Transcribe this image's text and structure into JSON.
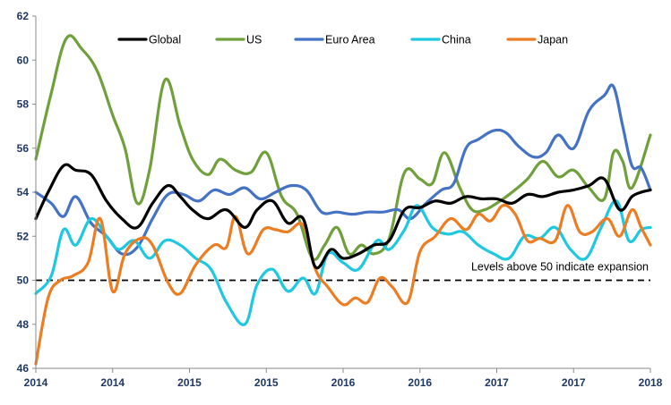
{
  "chart_data": {
    "type": "line",
    "title": "",
    "xlabel": "",
    "ylabel": "",
    "ylim": [
      46,
      62
    ],
    "yticks": [
      46,
      48,
      50,
      52,
      54,
      56,
      58,
      60,
      62
    ],
    "xlim": [
      0,
      1
    ],
    "xticks": [
      {
        "pos": 0.0,
        "label": "2014"
      },
      {
        "pos": 0.125,
        "label": "2014"
      },
      {
        "pos": 0.25,
        "label": "2015"
      },
      {
        "pos": 0.375,
        "label": "2015"
      },
      {
        "pos": 0.5,
        "label": "2016"
      },
      {
        "pos": 0.625,
        "label": "2016"
      },
      {
        "pos": 0.75,
        "label": "2017"
      },
      {
        "pos": 0.875,
        "label": "2017"
      },
      {
        "pos": 1.0,
        "label": "2018"
      }
    ],
    "grid": false,
    "legend_position": "top",
    "reference_line": {
      "y": 50,
      "style": "dashed",
      "color": "#000000"
    },
    "annotation": "Levels above 50 indicate expansion",
    "series": [
      {
        "name": "Global",
        "color": "#000000",
        "x": [
          0,
          0.02,
          0.045,
          0.065,
          0.09,
          0.115,
          0.14,
          0.165,
          0.19,
          0.215,
          0.235,
          0.255,
          0.28,
          0.31,
          0.34,
          0.36,
          0.385,
          0.41,
          0.435,
          0.455,
          0.48,
          0.5,
          0.525,
          0.55,
          0.575,
          0.6,
          0.625,
          0.65,
          0.675,
          0.7,
          0.725,
          0.75,
          0.775,
          0.8,
          0.825,
          0.85,
          0.875,
          0.9,
          0.925,
          0.95,
          0.97,
          0.985,
          1.0
        ],
        "values": [
          52.8,
          54.0,
          55.2,
          55.0,
          54.8,
          53.6,
          52.8,
          52.4,
          53.5,
          54.3,
          53.8,
          53.2,
          52.8,
          53.2,
          52.4,
          53.2,
          53.6,
          52.6,
          52.8,
          50.6,
          51.4,
          51.0,
          51.2,
          51.6,
          51.8,
          53.2,
          53.3,
          53.6,
          53.5,
          53.8,
          53.7,
          53.7,
          53.5,
          53.9,
          53.8,
          54.0,
          54.1,
          54.3,
          54.6,
          53.2,
          53.8,
          54.0,
          54.1
        ]
      },
      {
        "name": "US",
        "color": "#70a03c",
        "x": [
          0,
          0.025,
          0.05,
          0.075,
          0.1,
          0.125,
          0.145,
          0.165,
          0.185,
          0.21,
          0.235,
          0.255,
          0.28,
          0.3,
          0.325,
          0.35,
          0.375,
          0.4,
          0.425,
          0.45,
          0.47,
          0.49,
          0.51,
          0.53,
          0.55,
          0.575,
          0.6,
          0.625,
          0.645,
          0.665,
          0.69,
          0.71,
          0.73,
          0.75,
          0.775,
          0.8,
          0.825,
          0.85,
          0.875,
          0.9,
          0.925,
          0.94,
          0.955,
          0.97,
          1.0
        ],
        "values": [
          55.5,
          58.5,
          61.0,
          60.5,
          59.5,
          57.5,
          56.0,
          53.5,
          55.0,
          59.1,
          57.0,
          55.5,
          54.8,
          55.5,
          55.0,
          54.9,
          55.8,
          53.8,
          53.0,
          51.0,
          51.6,
          52.4,
          51.2,
          51.6,
          51.2,
          51.9,
          54.9,
          54.6,
          54.4,
          55.8,
          54.2,
          53.2,
          53.2,
          53.5,
          54.0,
          54.6,
          55.4,
          54.7,
          55.0,
          54.2,
          53.7,
          55.8,
          55.4,
          54.2,
          56.6
        ]
      },
      {
        "name": "Euro Area",
        "color": "#4472c4",
        "x": [
          0,
          0.025,
          0.045,
          0.065,
          0.09,
          0.115,
          0.14,
          0.165,
          0.19,
          0.215,
          0.24,
          0.265,
          0.29,
          0.315,
          0.34,
          0.365,
          0.39,
          0.415,
          0.44,
          0.465,
          0.49,
          0.515,
          0.54,
          0.565,
          0.59,
          0.61,
          0.635,
          0.66,
          0.68,
          0.7,
          0.72,
          0.745,
          0.765,
          0.785,
          0.81,
          0.83,
          0.85,
          0.875,
          0.9,
          0.925,
          0.94,
          0.955,
          0.97,
          0.985,
          1.0
        ],
        "values": [
          54.0,
          53.5,
          52.9,
          53.8,
          52.6,
          52.0,
          51.2,
          51.5,
          52.8,
          53.9,
          53.9,
          53.6,
          54.1,
          53.9,
          54.2,
          53.7,
          54.0,
          54.3,
          54.1,
          53.1,
          53.1,
          53.0,
          53.1,
          53.1,
          53.2,
          52.8,
          53.5,
          54.1,
          54.4,
          56.0,
          56.4,
          56.8,
          56.7,
          56.1,
          55.6,
          55.8,
          56.6,
          56.0,
          57.7,
          58.4,
          58.8,
          57.0,
          55.2,
          55.1,
          54.1
        ]
      },
      {
        "name": "China",
        "color": "#1ec8e0",
        "x": [
          0,
          0.025,
          0.045,
          0.065,
          0.09,
          0.115,
          0.135,
          0.16,
          0.185,
          0.21,
          0.235,
          0.26,
          0.285,
          0.31,
          0.34,
          0.36,
          0.385,
          0.41,
          0.435,
          0.455,
          0.475,
          0.5,
          0.525,
          0.555,
          0.575,
          0.6,
          0.62,
          0.645,
          0.67,
          0.695,
          0.72,
          0.745,
          0.77,
          0.795,
          0.82,
          0.845,
          0.87,
          0.895,
          0.92,
          0.945,
          0.965,
          0.985,
          1.0
        ],
        "values": [
          49.4,
          50.2,
          52.3,
          51.6,
          52.8,
          52.0,
          51.4,
          51.8,
          51.0,
          51.8,
          51.6,
          51.0,
          50.5,
          49.0,
          48.0,
          49.8,
          50.5,
          49.5,
          50.1,
          49.4,
          51.2,
          50.8,
          50.5,
          51.8,
          51.4,
          52.3,
          53.4,
          52.4,
          52.1,
          52.2,
          51.6,
          51.2,
          51.0,
          52.0,
          51.9,
          52.4,
          51.4,
          51.0,
          52.4,
          53.6,
          51.8,
          52.3,
          52.4
        ]
      },
      {
        "name": "Japan",
        "color": "#ed7d22",
        "x": [
          0,
          0.02,
          0.04,
          0.06,
          0.085,
          0.105,
          0.125,
          0.145,
          0.17,
          0.19,
          0.215,
          0.235,
          0.26,
          0.29,
          0.31,
          0.325,
          0.345,
          0.37,
          0.39,
          0.41,
          0.435,
          0.455,
          0.475,
          0.5,
          0.52,
          0.54,
          0.56,
          0.58,
          0.605,
          0.625,
          0.65,
          0.675,
          0.7,
          0.72,
          0.74,
          0.76,
          0.78,
          0.8,
          0.82,
          0.845,
          0.865,
          0.885,
          0.905,
          0.93,
          0.95,
          0.97,
          0.985,
          1.0
        ],
        "values": [
          46.2,
          49.2,
          50.0,
          50.2,
          50.8,
          52.8,
          49.5,
          51.2,
          51.9,
          51.6,
          49.9,
          49.4,
          50.7,
          51.6,
          51.5,
          52.9,
          51.2,
          52.3,
          52.3,
          52.2,
          52.5,
          50.5,
          49.7,
          48.9,
          49.2,
          49.0,
          50.1,
          49.7,
          49.0,
          51.3,
          52.0,
          52.8,
          52.3,
          53.0,
          52.7,
          53.4,
          53.0,
          51.8,
          51.9,
          51.8,
          53.4,
          52.2,
          52.2,
          52.8,
          52.0,
          53.2,
          52.4,
          51.6
        ]
      }
    ]
  }
}
